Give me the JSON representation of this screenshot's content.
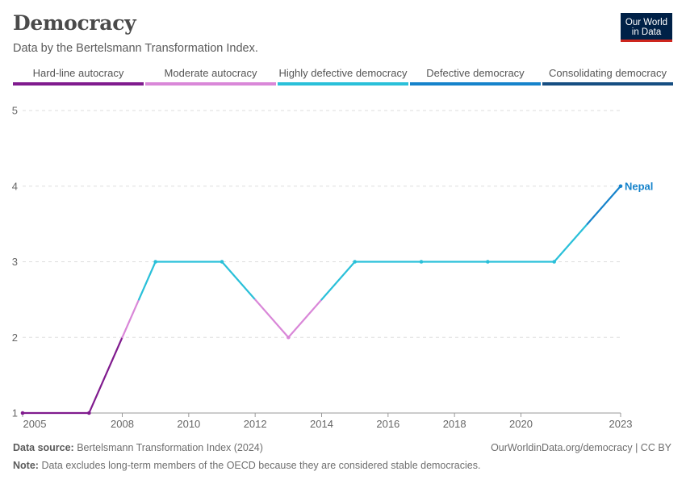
{
  "title": "Democracy",
  "subtitle": "Data by the Bertelsmann Transformation Index.",
  "logo": {
    "line1": "Our World",
    "line2": "in Data"
  },
  "legend": [
    {
      "label": "Hard-line autocracy",
      "color": "#801b8e"
    },
    {
      "label": "Moderate autocracy",
      "color": "#d987d8"
    },
    {
      "label": "Highly defective democracy",
      "color": "#2ac0d9"
    },
    {
      "label": "Defective democracy",
      "color": "#1683cb"
    },
    {
      "label": "Consolidating democracy",
      "color": "#164e82"
    }
  ],
  "chart_data": {
    "type": "line",
    "series": [
      {
        "name": "Nepal",
        "color": "#1683cb",
        "x": [
          2005,
          2007,
          2009,
          2011,
          2013,
          2015,
          2017,
          2019,
          2021,
          2023
        ],
        "values": [
          1,
          1,
          3,
          3,
          2,
          3,
          3,
          3,
          3,
          4
        ]
      }
    ],
    "x_ticks": [
      "2005",
      "2008",
      "2010",
      "2012",
      "2014",
      "2016",
      "2018",
      "2020",
      "2023"
    ],
    "y_ticks": [
      "1",
      "2",
      "3",
      "4",
      "5"
    ],
    "xlim": [
      2005,
      2023
    ],
    "ylim": [
      1,
      5
    ],
    "grid": "horizontal dashed",
    "color_scale": [
      {
        "range": [
          1,
          2
        ],
        "color": "#801b8e"
      },
      {
        "range": [
          2,
          2.5
        ],
        "color": "#d987d8"
      },
      {
        "range": [
          2.5,
          3.5
        ],
        "color": "#2ac0d9"
      },
      {
        "range": [
          3.5,
          4.5
        ],
        "color": "#1683cb"
      },
      {
        "range": [
          4.5,
          5
        ],
        "color": "#164e82"
      }
    ]
  },
  "footer": {
    "source_label": "Data source:",
    "source_text": "Bertelsmann Transformation Index (2024)",
    "url": "OurWorldinData.org/democracy | CC BY",
    "note_label": "Note:",
    "note_text": "Data excludes long-term members of the OECD because they are considered stable democracies."
  }
}
